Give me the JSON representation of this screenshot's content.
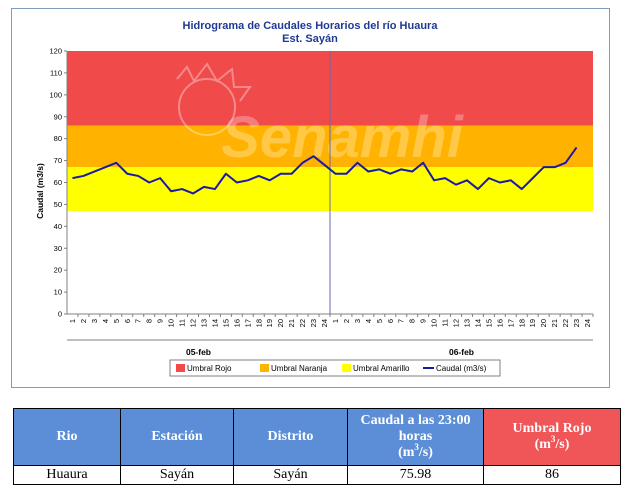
{
  "chart_data": {
    "type": "line",
    "title": "Hidrograma de Caudales Horarios del río Huaura",
    "subtitle": "Est. Sayán",
    "ylabel": "Caudal  (m3/s)",
    "ylim": [
      0,
      120
    ],
    "yticks": [
      0,
      10,
      20,
      30,
      40,
      50,
      60,
      70,
      80,
      90,
      100,
      110,
      120
    ],
    "x_tick_labels": [
      "1",
      "2",
      "3",
      "4",
      "5",
      "6",
      "7",
      "8",
      "9",
      "10",
      "11",
      "12",
      "13",
      "14",
      "15",
      "16",
      "17",
      "18",
      "19",
      "20",
      "21",
      "22",
      "23",
      "24",
      "1",
      "2",
      "3",
      "4",
      "5",
      "6",
      "7",
      "8",
      "9",
      "10",
      "11",
      "12",
      "13",
      "14",
      "15",
      "16",
      "17",
      "18",
      "19",
      "20",
      "21",
      "22",
      "23",
      "24"
    ],
    "day_labels": [
      "05-feb",
      "06-feb"
    ],
    "thresholds": [
      {
        "name": "Umbral Rojo",
        "from": 86,
        "to": 120,
        "color": "#f04a4a"
      },
      {
        "name": "Umbral Naranja",
        "from": 67,
        "to": 86,
        "color": "#ffb300"
      },
      {
        "name": "Umbral Amarillo",
        "from": 47,
        "to": 67,
        "color": "#ffff00"
      }
    ],
    "series": [
      {
        "name": "Caudal (m3/s)",
        "color": "#1a1aa6",
        "x_index": [
          1,
          2,
          3,
          4,
          5,
          6,
          7,
          8,
          9,
          10,
          11,
          12,
          13,
          14,
          15,
          16,
          17,
          18,
          19,
          20,
          21,
          22,
          23,
          24,
          25,
          26,
          27,
          28,
          29,
          30,
          31,
          32,
          33,
          34,
          35,
          36,
          37,
          38,
          39,
          40,
          41,
          42,
          43,
          44,
          45,
          46,
          47
        ],
        "values": [
          62,
          63,
          65,
          67,
          69,
          64,
          63,
          60,
          62,
          56,
          57,
          55,
          58,
          57,
          64,
          60,
          61,
          63,
          61,
          64,
          64,
          69,
          72,
          68,
          64,
          64,
          69,
          65,
          66,
          64,
          66,
          65,
          69,
          61,
          62,
          59,
          61,
          57,
          62,
          60,
          61,
          57,
          62,
          67,
          67,
          69,
          76
        ]
      }
    ],
    "grid": false,
    "legend_position": "bottom"
  },
  "watermark": "Senamhi",
  "table": {
    "headers": [
      "Rio",
      "Estación",
      "Distrito",
      "Caudal a las 23:00 horas",
      "(m",
      "3",
      "/s)",
      "Umbral Rojo",
      "(m",
      "3",
      "/s)"
    ],
    "row": [
      "Huaura",
      "Sayán",
      "Sayán",
      "75.98",
      "86"
    ]
  }
}
